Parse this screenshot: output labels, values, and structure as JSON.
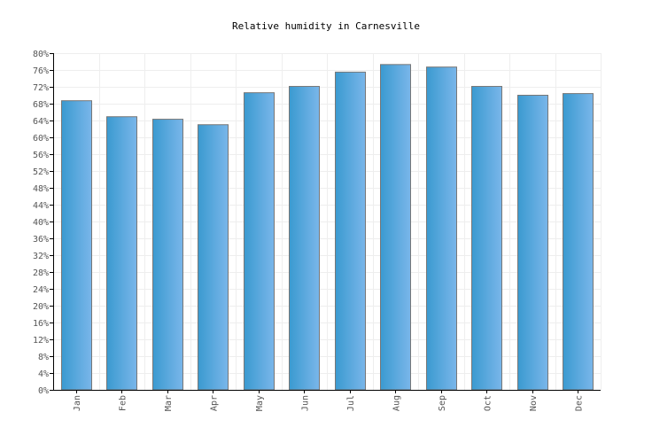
{
  "chart_data": {
    "type": "bar",
    "title": "Relative humidity in Carnesville",
    "xlabel": "",
    "ylabel": "",
    "categories": [
      "Jan",
      "Feb",
      "Mar",
      "Apr",
      "May",
      "Jun",
      "Jul",
      "Aug",
      "Sep",
      "Oct",
      "Nov",
      "Dec"
    ],
    "values": [
      68.7,
      64.9,
      64.3,
      63.0,
      70.6,
      72.1,
      75.5,
      77.3,
      76.7,
      72.1,
      70.0,
      70.4
    ],
    "ylim": [
      0,
      80
    ],
    "yticks": [
      "0%",
      "4%",
      "8%",
      "12%",
      "16%",
      "20%",
      "24%",
      "28%",
      "32%",
      "36%",
      "40%",
      "44%",
      "48%",
      "52%",
      "56%",
      "60%",
      "64%",
      "68%",
      "72%",
      "76%",
      "80%"
    ],
    "grid": true,
    "colors": {
      "bar_left": "#3a9ad0",
      "bar_right": "#7ab6ea",
      "bar_border": "#777777",
      "grid": "#eeeeee"
    }
  }
}
